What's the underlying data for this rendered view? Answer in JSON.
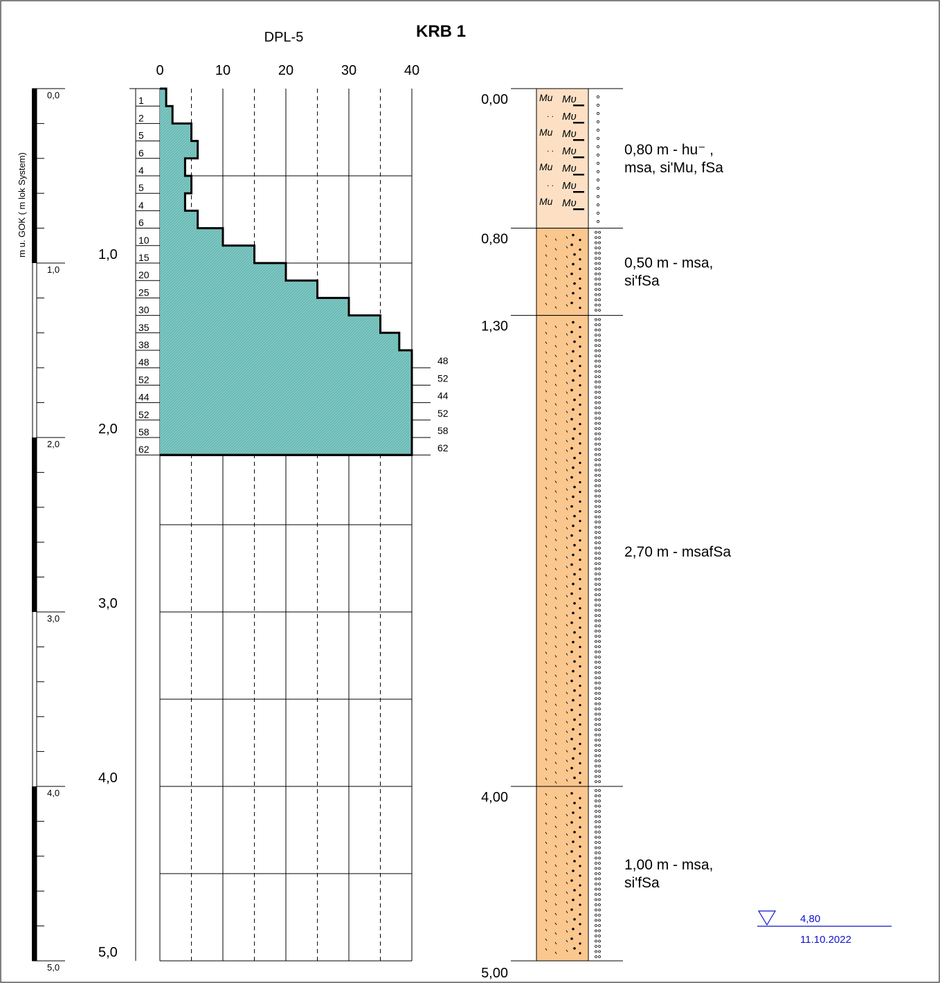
{
  "title": "KRB 1",
  "probe": {
    "label": "DPL-5",
    "axis_ticks": [
      "0",
      "10",
      "20",
      "30",
      "40"
    ],
    "axis_range": [
      0,
      40
    ],
    "interval_m": 0.1,
    "blows": [
      1,
      2,
      5,
      6,
      4,
      5,
      4,
      6,
      10,
      15,
      20,
      25,
      30,
      35,
      38,
      48,
      52,
      44,
      52,
      58,
      62
    ],
    "overflow_labels": [
      "48",
      "52",
      "44",
      "52",
      "58",
      "62"
    ],
    "fill_color": "#7ec8c4",
    "depth_ticks": [
      "1,0",
      "2,0",
      "3,0",
      "4,0",
      "5,0"
    ]
  },
  "depth_scale": {
    "axis_label": "m u. GOK ( m lok System)",
    "ticks": [
      "0,0",
      "1,0",
      "2,0",
      "3,0",
      "4,0",
      "5,0"
    ],
    "range_m": [
      0,
      5
    ]
  },
  "boring": {
    "layers": [
      {
        "top": "0,00",
        "top_m": 0.0,
        "bottom_m": 0.8,
        "label": "0,80 m  - hu⁻ ,",
        "label2": "msa, si'Mu, fSa",
        "color": "#fde0c4",
        "pattern": "mu"
      },
      {
        "top": "0,80",
        "top_m": 0.8,
        "bottom_m": 1.3,
        "label": "0,50 m  - msa,",
        "label2": "si'fSa",
        "color": "#fac78f",
        "pattern": "sand"
      },
      {
        "top": "1,30",
        "top_m": 1.3,
        "bottom_m": 4.0,
        "label": "2,70 m  - msafSa",
        "label2": "",
        "color": "#fac78f",
        "pattern": "sand"
      },
      {
        "top": "4,00",
        "top_m": 4.0,
        "bottom_m": 5.0,
        "label": "1,00 m  - msa,",
        "label2": "si'fSa",
        "color": "#fac78f",
        "pattern": "sand"
      }
    ],
    "bottom_label": "5,00"
  },
  "groundwater": {
    "depth": "4,80",
    "date": "11.10.2022",
    "color": "#1010cc"
  }
}
